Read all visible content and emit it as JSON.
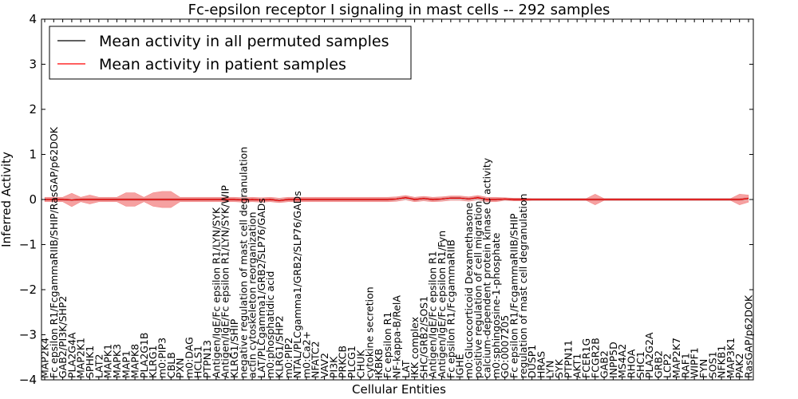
{
  "chart_data": {
    "type": "line",
    "title": "Fc-epsilon receptor I signaling in mast cells -- 292 samples",
    "xlabel": "Cellular Entities",
    "ylabel": "Inferred Activity",
    "ylim": [
      -4,
      4
    ],
    "yticks": [
      "−4",
      "−3",
      "−2",
      "−1",
      "0",
      "1",
      "2",
      "3",
      "4"
    ],
    "legend": {
      "placement": "top-left",
      "entries": [
        {
          "label": "Mean activity in all permuted samples",
          "color": "#000000"
        },
        {
          "label": "Mean activity in patient samples",
          "color": "#ff0000"
        }
      ]
    },
    "categories": [
      "MAP2K4",
      "Fc epsilon R1/FcgammaRIIB/SHIP/RasGAP/p62DOK",
      "GAB2/PI3K/SHP2",
      "PLA2G4A",
      "MAP2K1",
      "SPHK1",
      "LAT2",
      "MAPK1",
      "MAPK3",
      "MAP1",
      "MAPK8",
      "PLA2G1B",
      "KLRG1",
      "m0:PIP3",
      "CBLB",
      "PXN",
      "m0:DAG",
      "HCLS1",
      "PTPN13",
      "Antigen/IgE/Fc epsilon R1/LYN/SYK",
      "Antigen/IgE/Fc epsilon R1/LYN/SYK/WIP",
      "KLRG1/SHIP",
      "negative regulation of mast cell degranulation",
      "actin cytoskeleton reorganization",
      "LAT/PLCgamma1/GRB2/SLP76/GADs",
      "m0:phosphatidic acid",
      "KLRG1/SHP2",
      "m0:PIP2",
      "NTAL/PLCgamma1/GRB2/SLP76/GADs",
      "m0:Ca2+",
      "NFATC2",
      "VAV2",
      "PI3K",
      "PRKCB",
      "PLCG1",
      "CHUK",
      "cytokine secretion",
      "IKBKB",
      "Fc epsilon R1",
      "NF-kappa-B/RelA",
      "LAT",
      "IKK complex",
      "SHC/GRB2/SOS1",
      "Antigen/IgE/Fc epsilon R1",
      "Antigen/IgE/Fc epsilon R1/Fyn",
      "Fc epsilon R1/FcgammaRIIB",
      "IGHE",
      "m0:Glucocorticoid Dexamethasone",
      "positive regulation of cell migration",
      "calcium-dependent protein kinase C activity",
      "m0:sphingosine-1-phosphate",
      "GO:0007205",
      "Fc epsilon R1/FcgammaRIIB/SHIP",
      "regulation of mast cell degranulation",
      "DUSP1",
      "HRAS",
      "LYN",
      "SYK",
      "PTPN11",
      "AKT1",
      "FCER1G",
      "FCGR2B",
      "GAB2",
      "INPP5D",
      "MS4A2",
      "RHOA",
      "SHC1",
      "PLA2G2A",
      "GRB2",
      "LCP2",
      "MAP2K7",
      "RAF1",
      "WIPF1",
      "FYN",
      "SOS1",
      "NFKB1",
      "MAP3K1",
      "PAK2",
      "RasGAP/p62DOK"
    ],
    "series": [
      {
        "name": "Mean activity in all permuted samples",
        "values": [
          0.0,
          0.0,
          0.0,
          -0.01,
          0.0,
          0.0,
          0.0,
          0.0,
          0.0,
          0.0,
          0.0,
          0.0,
          0.0,
          0.0,
          0.0,
          0.0,
          0.0,
          0.0,
          0.0,
          0.0,
          0.0,
          0.0,
          -0.01,
          0.0,
          -0.01,
          0.0,
          -0.02,
          0.0,
          0.0,
          0.0,
          0.0,
          0.0,
          0.0,
          0.0,
          0.0,
          0.0,
          0.0,
          0.0,
          0.0,
          0.01,
          0.04,
          0.0,
          0.02,
          0.0,
          0.01,
          0.03,
          0.03,
          0.01,
          0.04,
          0.0,
          0.0,
          0.01,
          0.0,
          0.0,
          0.0,
          0.0,
          0.0,
          0.0,
          0.0,
          0.0,
          0.0,
          0.0,
          0.0,
          0.0,
          0.0,
          0.0,
          0.0,
          0.0,
          0.0,
          0.0,
          0.0,
          0.0,
          0.0,
          0.0,
          0.0,
          0.0,
          0.0,
          0.0,
          0.02
        ]
      },
      {
        "name": "Mean activity in patient samples",
        "values": [
          0.0,
          0.0,
          0.0,
          -0.01,
          0.0,
          0.0,
          0.0,
          0.0,
          0.0,
          0.0,
          0.0,
          0.0,
          0.0,
          0.0,
          0.0,
          0.0,
          0.0,
          0.0,
          0.0,
          0.0,
          0.0,
          0.0,
          -0.01,
          0.0,
          -0.01,
          0.0,
          -0.02,
          0.0,
          0.0,
          0.0,
          0.0,
          0.0,
          0.0,
          0.0,
          0.0,
          0.0,
          0.0,
          0.0,
          0.0,
          0.01,
          0.04,
          0.0,
          0.02,
          0.0,
          0.01,
          0.03,
          0.03,
          0.01,
          0.04,
          0.0,
          0.0,
          0.01,
          0.0,
          0.0,
          0.0,
          0.0,
          0.0,
          0.0,
          0.0,
          0.0,
          0.0,
          0.0,
          0.0,
          0.0,
          0.0,
          0.0,
          0.0,
          0.0,
          0.0,
          0.0,
          0.0,
          0.0,
          0.0,
          0.0,
          0.0,
          0.0,
          0.0,
          0.0,
          0.02
        ]
      }
    ],
    "patient_band_halfwidth": [
      0.05,
      0.05,
      0.05,
      0.15,
      0.05,
      0.1,
      0.05,
      0.05,
      0.05,
      0.15,
      0.15,
      0.05,
      0.15,
      0.18,
      0.18,
      0.05,
      0.05,
      0.05,
      0.05,
      0.05,
      0.05,
      0.05,
      0.05,
      0.05,
      0.05,
      0.05,
      0.05,
      0.05,
      0.05,
      0.05,
      0.05,
      0.05,
      0.05,
      0.05,
      0.05,
      0.05,
      0.05,
      0.05,
      0.05,
      0.05,
      0.05,
      0.05,
      0.05,
      0.05,
      0.05,
      0.05,
      0.05,
      0.05,
      0.05,
      0.05,
      0.05,
      0.03,
      0.03,
      0.03,
      0.02,
      0.02,
      0.02,
      0.02,
      0.02,
      0.02,
      0.02,
      0.12,
      0.02,
      0.02,
      0.02,
      0.02,
      0.02,
      0.02,
      0.02,
      0.02,
      0.02,
      0.02,
      0.02,
      0.02,
      0.02,
      0.02,
      0.02,
      0.12,
      0.08
    ],
    "permuted_band_halfwidth": 0.03,
    "grid": false
  }
}
